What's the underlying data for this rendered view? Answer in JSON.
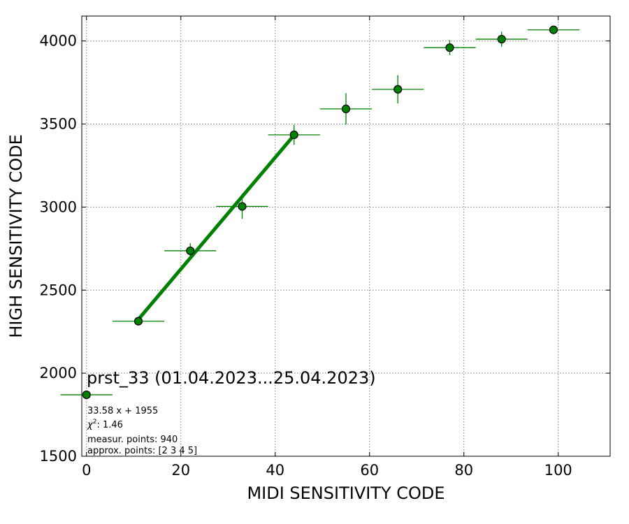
{
  "chart_data": {
    "type": "scatter",
    "xlabel": "MIDI SENSITIVITY CODE",
    "ylabel": "HIGH SENSITIVITY CODE",
    "xlim": [
      -1,
      111
    ],
    "ylim": [
      1500,
      4150
    ],
    "xticks": [
      "0",
      "20",
      "40",
      "60",
      "80",
      "100"
    ],
    "xtick_values": [
      0,
      20,
      40,
      60,
      80,
      100
    ],
    "yticks": [
      "1500",
      "2000",
      "2500",
      "3000",
      "3500",
      "4000"
    ],
    "ytick_values": [
      1500,
      2000,
      2500,
      3000,
      3500,
      4000
    ],
    "grid": true,
    "points": [
      {
        "x": 11,
        "y": 2313,
        "xerr": 5.5,
        "yerr": 20
      },
      {
        "x": 22,
        "y": 2737,
        "xerr": 5.5,
        "yerr": 45
      },
      {
        "x": 33,
        "y": 3004,
        "xerr": 5.5,
        "yerr": 75
      },
      {
        "x": 44,
        "y": 3435,
        "xerr": 5.5,
        "yerr": 60
      },
      {
        "x": 55,
        "y": 3591,
        "xerr": 5.5,
        "yerr": 95
      },
      {
        "x": 66,
        "y": 3709,
        "xerr": 5.5,
        "yerr": 85
      },
      {
        "x": 77,
        "y": 3960,
        "xerr": 5.5,
        "yerr": 45
      },
      {
        "x": 88,
        "y": 4011,
        "xerr": 5.5,
        "yerr": 45
      },
      {
        "x": 99,
        "y": 4067,
        "xerr": 5.5,
        "yerr": 10
      }
    ],
    "fit_line": {
      "x": [
        11,
        44
      ],
      "y": [
        2324,
        3433
      ]
    },
    "colors": {
      "series": "#008000",
      "marker_edge": "#000000"
    },
    "legend": {
      "placement": "bottom-left",
      "title": "prst_33 (01.04.2023...25.04.2023)",
      "marker": {
        "x": 0,
        "y": 1870,
        "xerr": 5.5
      },
      "fit_text": "33.58 x + 1955",
      "chi2_symbol": "χ",
      "chi2_sup": "2",
      "chi2_value": ": 1.46",
      "measur_points": "measur. points: 940",
      "approx_points": "approx. points: [2 3 4 5]"
    }
  }
}
